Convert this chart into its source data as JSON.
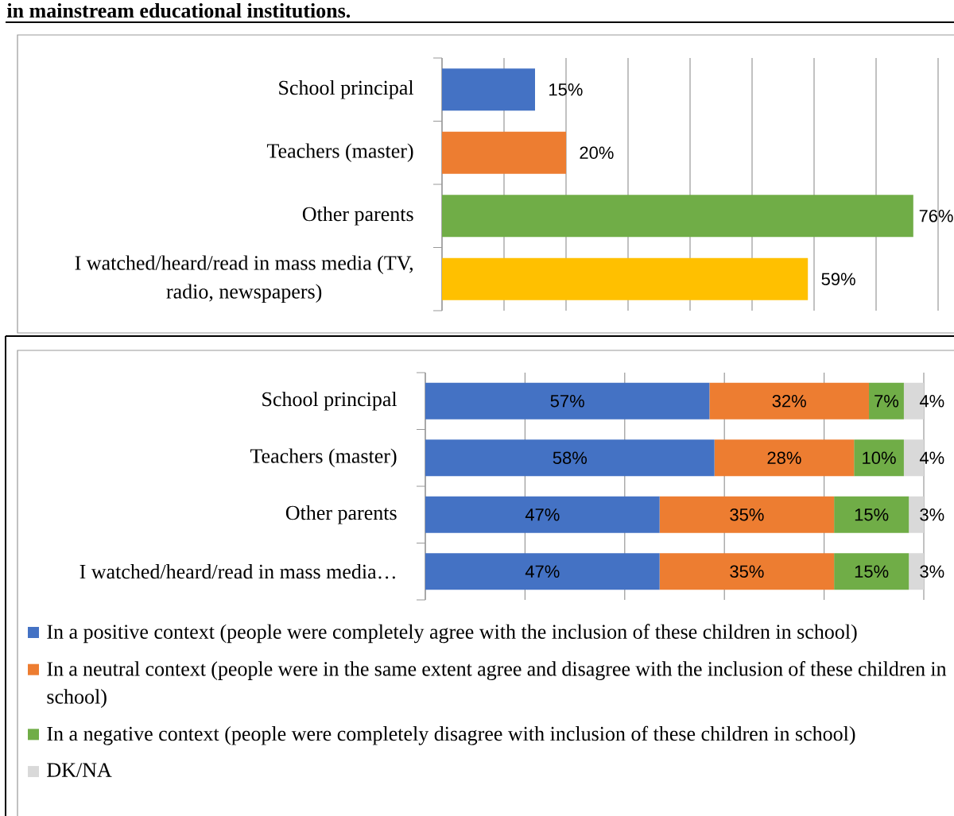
{
  "chart_data": [
    {
      "type": "bar",
      "title": "in mainstream educational institutions.",
      "orientation": "horizontal",
      "categories": [
        "School principal",
        "Teachers (master)",
        "Other parents",
        "I watched/heard/read in mass media (TV, radio, newspapers)"
      ],
      "values": [
        15,
        20,
        76,
        59
      ],
      "colors": [
        "#4472c4",
        "#ed7d31",
        "#70ad47",
        "#ffc000"
      ],
      "value_labels": [
        "15%",
        "20%",
        "76%",
        "59%"
      ],
      "xlim": [
        0,
        80
      ],
      "xticks": [
        0,
        10,
        20,
        30,
        40,
        50,
        60,
        70,
        80
      ],
      "tick_labels": "y",
      "grid": "x"
    },
    {
      "type": "bar",
      "orientation": "horizontal",
      "stacked": true,
      "categories": [
        "School principal",
        "Teachers (master)",
        "Other parents",
        "I watched/heard/read in mass media…"
      ],
      "series": [
        {
          "name": "In a positive context (people were completely agree with the inclusion of these children in school)",
          "color": "#4472c4",
          "values": [
            57,
            58,
            47,
            47
          ],
          "value_labels": [
            "57%",
            "58%",
            "47%",
            "47%"
          ]
        },
        {
          "name": "In a neutral context (people were in the same extent agree and disagree with the inclusion of these children in school)",
          "color": "#ed7d31",
          "values": [
            32,
            28,
            35,
            35
          ],
          "value_labels": [
            "32%",
            "28%",
            "35%",
            "35%"
          ]
        },
        {
          "name": "In a negative context (people were completely disagree with inclusion of these children in school)",
          "color": "#70ad47",
          "values": [
            7,
            10,
            15,
            15
          ],
          "value_labels": [
            "7%",
            "10%",
            "15%",
            "15%"
          ]
        },
        {
          "name": "DK/NA",
          "color": "#d9d9d9",
          "values": [
            4,
            4,
            3,
            3
          ],
          "value_labels": [
            "4%",
            "4%",
            "3%",
            "3%"
          ]
        }
      ],
      "xlim": [
        0,
        100
      ],
      "xticks": [
        0,
        20,
        40,
        60,
        80,
        100
      ],
      "tick_labels": "y",
      "grid": "x",
      "legend": "bottom"
    }
  ]
}
